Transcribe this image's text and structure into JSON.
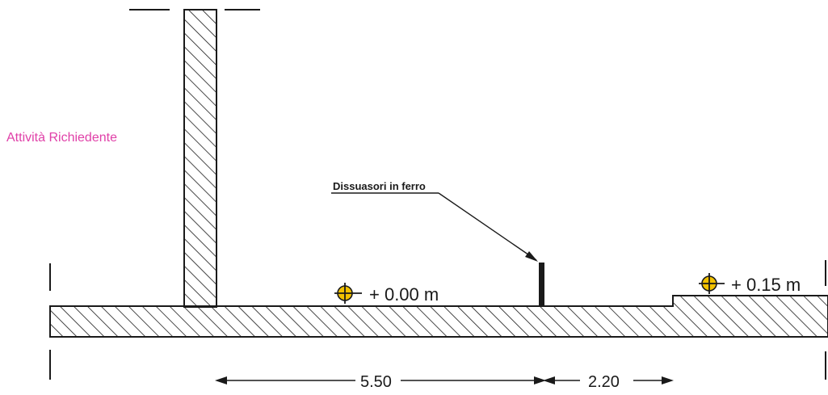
{
  "labels": {
    "activity": "Attività Richiedente",
    "bollards": "Dissuasori in ferro",
    "level_left": "+ 0.00 m",
    "level_right": "+ 0.15 m"
  },
  "dimensions": {
    "left_span": "5.50",
    "right_span": "2.20"
  },
  "colors": {
    "ink": "#1a1a1a",
    "activity_label": "#e040a8",
    "level_marker_fill": "#f2c200"
  }
}
